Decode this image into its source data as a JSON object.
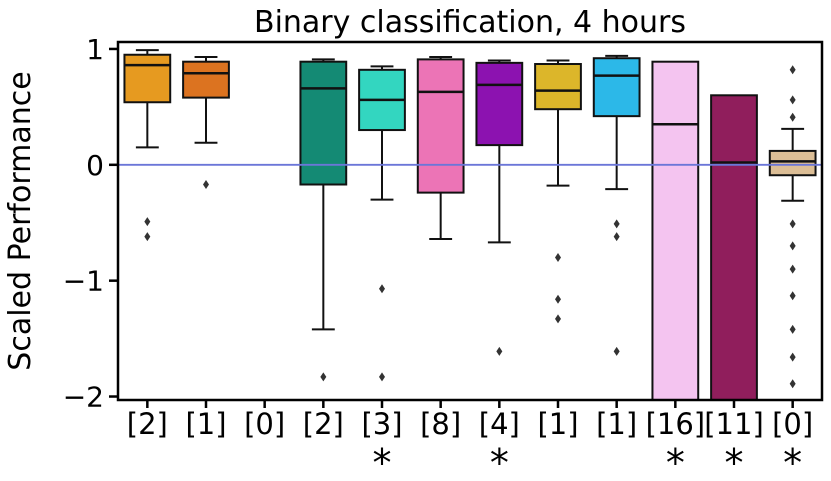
{
  "chart_data": {
    "type": "boxplot",
    "title": "Binary classification, 4 hours",
    "ylabel": "Scaled Performance",
    "ylim": [
      -2.03,
      1.06
    ],
    "yticks": [
      {
        "value": 1,
        "label": "1"
      },
      {
        "value": 0,
        "label": "0"
      },
      {
        "value": -1,
        "label": "−1"
      },
      {
        "value": -2,
        "label": "−2"
      }
    ],
    "refline": {
      "y": 0,
      "color": "#6b76d8"
    },
    "asterisk_symbol": "*",
    "categories": [
      "[2]",
      "[1]",
      "[0]",
      "[2]",
      "[3]",
      "[8]",
      "[4]",
      "[1]",
      "[1]",
      "[16]",
      "[11]",
      "[0]"
    ],
    "asterisks": [
      false,
      false,
      false,
      false,
      true,
      false,
      true,
      false,
      false,
      true,
      true,
      true
    ],
    "boxes": [
      {
        "color": "#e69a20",
        "q1": 0.54,
        "median": 0.86,
        "q3": 0.95,
        "lo": 0.15,
        "hi": 0.99,
        "outliers": [
          -0.49,
          -0.62
        ]
      },
      {
        "color": "#dc7320",
        "q1": 0.58,
        "median": 0.79,
        "q3": 0.89,
        "lo": 0.19,
        "hi": 0.93,
        "outliers": [
          -0.17
        ]
      },
      null,
      {
        "color": "#148a74",
        "q1": -0.17,
        "median": 0.66,
        "q3": 0.89,
        "lo": -1.42,
        "hi": 0.91,
        "outliers": [
          -1.83
        ]
      },
      {
        "color": "#33d6c0",
        "q1": 0.3,
        "median": 0.56,
        "q3": 0.82,
        "lo": -0.3,
        "hi": 0.85,
        "outliers": [
          -1.07,
          -1.83
        ]
      },
      {
        "color": "#ec74b6",
        "q1": -0.24,
        "median": 0.63,
        "q3": 0.91,
        "lo": -0.64,
        "hi": 0.93,
        "outliers": []
      },
      {
        "color": "#8c12b0",
        "q1": 0.17,
        "median": 0.69,
        "q3": 0.88,
        "lo": -0.67,
        "hi": 0.9,
        "outliers": [
          -1.61
        ]
      },
      {
        "color": "#dcb62a",
        "q1": 0.48,
        "median": 0.64,
        "q3": 0.87,
        "lo": -0.18,
        "hi": 0.9,
        "outliers": [
          -0.8,
          -1.16,
          -1.33
        ]
      },
      {
        "color": "#2cb8e8",
        "q1": 0.42,
        "median": 0.77,
        "q3": 0.92,
        "lo": -0.21,
        "hi": 0.94,
        "outliers": [
          -0.51,
          -0.62,
          -1.61
        ]
      },
      {
        "color": "#f4c4f0",
        "q1": -2.2,
        "median": 0.35,
        "q3": 0.89,
        "lo": null,
        "hi": null,
        "outliers": []
      },
      {
        "color": "#901e5c",
        "q1": -2.2,
        "median": 0.02,
        "q3": 0.6,
        "lo": null,
        "hi": null,
        "outliers": []
      },
      {
        "color": "#dcbe96",
        "q1": -0.09,
        "median": 0.03,
        "q3": 0.12,
        "lo": -0.31,
        "hi": 0.31,
        "outliers": [
          0.82,
          0.56,
          0.41,
          -0.51,
          -0.7,
          -0.9,
          -1.13,
          -1.42,
          -1.66,
          -1.89
        ]
      }
    ]
  }
}
